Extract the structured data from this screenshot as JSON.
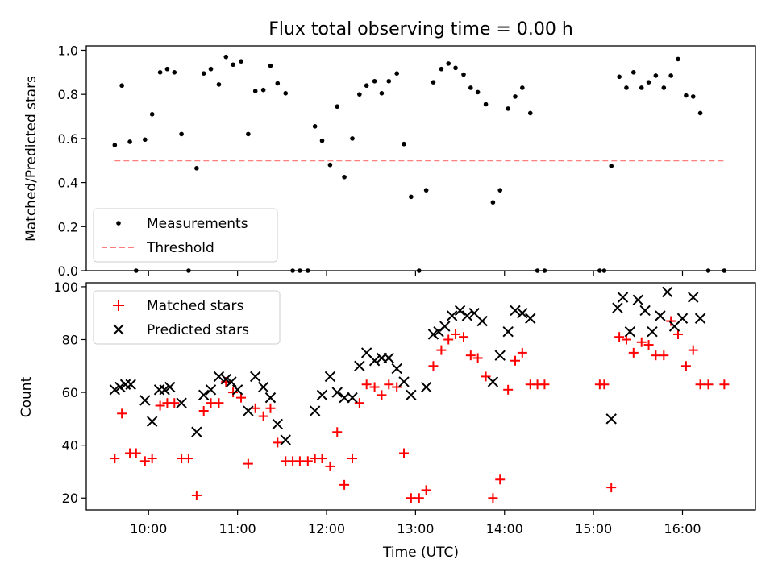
{
  "chart_data": [
    {
      "type": "scatter",
      "title": "Flux total observing time = 0.00 h",
      "xlabel": "",
      "ylabel": "Matched/Predicted stars",
      "ylim": [
        0.0,
        1.02
      ],
      "yticks": [
        "0.0",
        "0.2",
        "0.4",
        "0.6",
        "0.8",
        "1.0"
      ],
      "xlim_hours": [
        9.3,
        16.82
      ],
      "legend_position": "lower-left",
      "series": [
        {
          "name": "Measurements",
          "color": "#000000",
          "x": [
            9.62,
            9.7,
            9.79,
            9.86,
            9.96,
            10.04,
            10.13,
            10.21,
            10.29,
            10.37,
            10.45,
            10.54,
            10.62,
            10.7,
            10.79,
            10.87,
            10.95,
            11.04,
            11.12,
            11.2,
            11.29,
            11.37,
            11.45,
            11.54,
            11.62,
            11.7,
            11.79,
            11.87,
            11.95,
            12.04,
            12.12,
            12.2,
            12.29,
            12.37,
            12.45,
            12.54,
            12.62,
            12.7,
            12.79,
            12.87,
            12.95,
            13.04,
            13.12,
            13.2,
            13.29,
            13.37,
            13.45,
            13.54,
            13.62,
            13.7,
            13.79,
            13.87,
            13.95,
            14.04,
            14.12,
            14.2,
            14.29,
            14.37,
            14.45,
            15.07,
            15.12,
            15.2,
            15.29,
            15.37,
            15.45,
            15.54,
            15.62,
            15.7,
            15.79,
            15.87,
            15.95,
            16.04,
            16.12,
            16.2,
            16.29,
            16.47
          ],
          "y": [
            0.57,
            0.84,
            0.585,
            0.0,
            0.595,
            0.71,
            0.9,
            0.915,
            0.9,
            0.62,
            0.0,
            0.465,
            0.895,
            0.915,
            0.845,
            0.97,
            0.935,
            0.95,
            0.62,
            0.815,
            0.82,
            0.93,
            0.85,
            0.805,
            0.0,
            0.0,
            0.0,
            0.655,
            0.59,
            0.48,
            0.745,
            0.425,
            0.6,
            0.8,
            0.84,
            0.86,
            0.805,
            0.86,
            0.895,
            0.575,
            0.335,
            0.0,
            0.365,
            0.855,
            0.915,
            0.94,
            0.92,
            0.89,
            0.83,
            0.81,
            0.755,
            0.31,
            0.365,
            0.735,
            0.79,
            0.83,
            0.715,
            0.0,
            0.0,
            0.0,
            0.0,
            0.475,
            0.88,
            0.83,
            0.9,
            0.83,
            0.855,
            0.885,
            0.83,
            0.885,
            0.96,
            0.795,
            0.79,
            0.715,
            0.0,
            0.0
          ]
        },
        {
          "name": "Threshold",
          "color": "#ff7f7f",
          "style": "dashed",
          "x": [
            9.62,
            16.47
          ],
          "y": [
            0.5,
            0.5
          ]
        }
      ]
    },
    {
      "type": "scatter",
      "title": "",
      "xlabel": "Time (UTC)",
      "ylabel": "Count",
      "ylim": [
        15.5,
        101.5
      ],
      "yticks": [
        "20",
        "40",
        "60",
        "80",
        "100"
      ],
      "xlim_hours": [
        9.3,
        16.82
      ],
      "xticks": [
        "10:00",
        "11:00",
        "12:00",
        "13:00",
        "14:00",
        "15:00",
        "16:00"
      ],
      "legend_position": "top-left",
      "series": [
        {
          "name": "Matched stars",
          "color": "#ff0000",
          "x": [
            9.62,
            9.7,
            9.79,
            9.86,
            9.96,
            10.04,
            10.13,
            10.21,
            10.29,
            10.37,
            10.45,
            10.54,
            10.62,
            10.7,
            10.79,
            10.87,
            10.95,
            11.04,
            11.12,
            11.2,
            11.29,
            11.37,
            11.45,
            11.54,
            11.62,
            11.7,
            11.79,
            11.87,
            11.95,
            12.04,
            12.12,
            12.2,
            12.29,
            12.37,
            12.45,
            12.54,
            12.62,
            12.7,
            12.79,
            12.87,
            12.95,
            13.04,
            13.12,
            13.2,
            13.29,
            13.37,
            13.45,
            13.54,
            13.62,
            13.7,
            13.79,
            13.87,
            13.95,
            14.04,
            14.12,
            14.2,
            14.29,
            14.37,
            14.45,
            15.07,
            15.12,
            15.2,
            15.29,
            15.37,
            15.45,
            15.54,
            15.62,
            15.7,
            15.79,
            15.87,
            15.95,
            16.04,
            16.12,
            16.2,
            16.29,
            16.47
          ],
          "y": [
            35,
            52,
            37,
            37,
            34,
            35,
            55,
            56,
            56,
            35,
            35,
            21,
            53,
            56,
            56,
            64,
            60,
            58,
            33,
            54,
            51,
            54,
            41,
            34,
            34,
            34,
            34,
            35,
            35,
            32,
            45,
            25,
            35,
            56,
            63,
            62,
            59,
            63,
            62,
            37,
            20,
            20,
            23,
            70,
            76,
            80,
            82,
            81,
            74,
            73,
            66,
            20,
            27,
            61,
            72,
            75,
            63,
            63,
            63,
            63,
            63,
            24,
            81,
            80,
            75,
            79,
            78,
            74,
            74,
            87,
            82,
            70,
            76,
            63,
            63,
            63
          ]
        },
        {
          "name": "Predicted stars",
          "color": "#000000",
          "x": [
            9.62,
            9.68,
            9.74,
            9.8,
            9.96,
            10.04,
            10.12,
            10.18,
            10.24,
            10.37,
            10.54,
            10.62,
            10.7,
            10.79,
            10.87,
            10.93,
            11.0,
            11.12,
            11.2,
            11.29,
            11.37,
            11.45,
            11.54,
            11.87,
            11.95,
            12.04,
            12.12,
            12.2,
            12.29,
            12.37,
            12.45,
            12.54,
            12.62,
            12.7,
            12.79,
            12.87,
            12.95,
            13.12,
            13.2,
            13.26,
            13.33,
            13.41,
            13.5,
            13.58,
            13.66,
            13.75,
            13.87,
            13.95,
            14.04,
            14.12,
            14.2,
            14.29,
            15.2,
            15.27,
            15.33,
            15.41,
            15.5,
            15.58,
            15.66,
            15.75,
            15.83,
            15.91,
            16.0,
            16.12,
            16.2
          ],
          "y": [
            61,
            62,
            63,
            63,
            57,
            49,
            61,
            61,
            62,
            56,
            45,
            59,
            61,
            66,
            65,
            64,
            61,
            53,
            66,
            62,
            58,
            48,
            42,
            53,
            59,
            66,
            60,
            58,
            58,
            70,
            75,
            72,
            73,
            73,
            69,
            64,
            59,
            62,
            82,
            83,
            85,
            89,
            91,
            89,
            90,
            87,
            64,
            74,
            83,
            91,
            90,
            88,
            50,
            92,
            96,
            83,
            95,
            91,
            83,
            89,
            98,
            85,
            88,
            96,
            88
          ]
        }
      ]
    }
  ]
}
